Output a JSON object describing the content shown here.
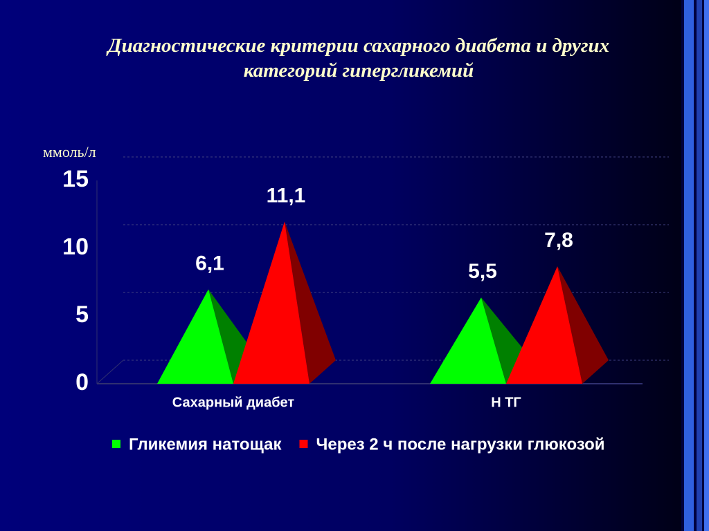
{
  "chart_data": {
    "type": "pyramid",
    "title": "Диагностические критерии сахарного диабета и других категорий гипергликемий",
    "y_label": "ммоль/л",
    "categories": [
      "Сахарный диабет",
      "Н ТГ"
    ],
    "series": [
      {
        "name": "Гликемия натощак",
        "color": "#00ff00",
        "dark_color": "#008000",
        "values": [
          6.1,
          5.5
        ],
        "value_labels": [
          "6,1",
          "5,5"
        ]
      },
      {
        "name": "Через 2 ч после нагрузки глюкозой",
        "color": "#ff0000",
        "dark_color": "#800000",
        "values": [
          11.1,
          7.8
        ],
        "value_labels": [
          "11,1",
          "7,8"
        ]
      }
    ],
    "ylim": [
      0,
      15
    ],
    "yticks": [
      0,
      5,
      10,
      15
    ],
    "grid": true,
    "legend": "bottom"
  }
}
